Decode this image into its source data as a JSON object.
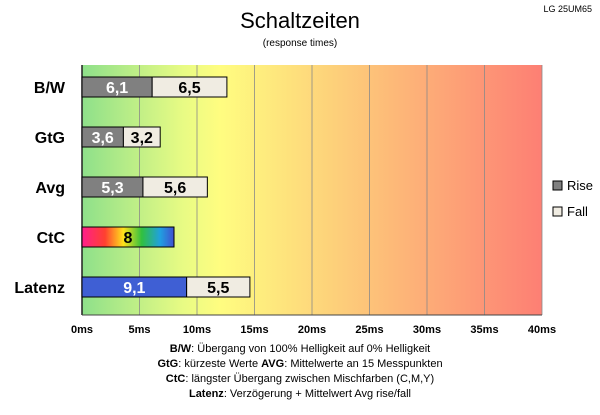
{
  "chart_data": {
    "type": "bar",
    "orientation": "horizontal",
    "stacked": true,
    "title": "Schaltzeiten",
    "subtitle": "(response times)",
    "model": "LG 25UM65",
    "categories": [
      "B/W",
      "GtG",
      "Avg",
      "CtC",
      "Latenz"
    ],
    "series": [
      {
        "name": "Rise",
        "color": "#808080",
        "values": [
          6.1,
          3.6,
          5.3,
          8,
          9.1
        ],
        "labels": [
          "6,1",
          "3,6",
          "5,3",
          "8",
          "9,1"
        ]
      },
      {
        "name": "Fall",
        "color": "#f0ece2",
        "values": [
          6.5,
          3.2,
          5.6,
          null,
          5.5
        ],
        "labels": [
          "6,5",
          "3,2",
          "5,6",
          "",
          "5,5"
        ]
      }
    ],
    "special_colors": {
      "CtC": "rainbow",
      "Latenz": "#3f5fd4"
    },
    "xlim": [
      0,
      40
    ],
    "xticks": [
      "0ms",
      "5ms",
      "10ms",
      "15ms",
      "20ms",
      "25ms",
      "30ms",
      "35ms",
      "40ms"
    ],
    "grid": true,
    "legend": "right",
    "background_gradient": [
      "#90e090",
      "#ffff80",
      "#ff8070"
    ]
  },
  "notes": [
    {
      "key": "B/W",
      "text": ":  Übergang von 100% Helligkeit auf 0% Helligkeit"
    },
    {
      "key": "GtG",
      "text": ": kürzeste  Werte",
      "key2": "AVG",
      "text2": ": Mittelwerte  an 15 Messpunkten"
    },
    {
      "key": "CtC",
      "text": ": längster Übergang  zwischen Mischfarben (C,M,Y)"
    },
    {
      "key": "Latenz",
      "text": ": Verzögerung  + Mittelwert Avg rise/fall"
    }
  ]
}
